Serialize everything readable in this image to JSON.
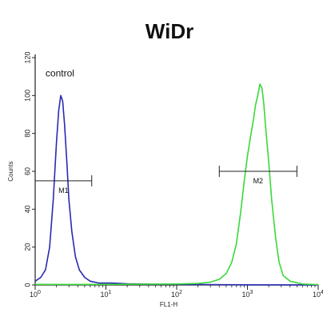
{
  "chart_data": {
    "type": "line",
    "title": "WiDr",
    "xlabel": "FL1-H",
    "ylabel": "Counts",
    "x_scale": "log",
    "xlim": [
      1,
      10000
    ],
    "ylim": [
      0,
      120
    ],
    "x_ticks": [
      {
        "value": 1,
        "base": "10",
        "exp": "0"
      },
      {
        "value": 10,
        "base": "10",
        "exp": "1"
      },
      {
        "value": 100,
        "base": "10",
        "exp": "2"
      },
      {
        "value": 1000,
        "base": "10",
        "exp": "3"
      },
      {
        "value": 10000,
        "base": "10",
        "exp": "4"
      }
    ],
    "y_ticks": [
      0,
      20,
      40,
      60,
      80,
      100,
      120
    ],
    "grid": false,
    "series": [
      {
        "name": "control",
        "color": "#2a2ab0",
        "points": [
          [
            1.0,
            2
          ],
          [
            1.2,
            4
          ],
          [
            1.4,
            8
          ],
          [
            1.6,
            20
          ],
          [
            1.8,
            45
          ],
          [
            2.0,
            75
          ],
          [
            2.15,
            92
          ],
          [
            2.3,
            100
          ],
          [
            2.45,
            97
          ],
          [
            2.6,
            85
          ],
          [
            2.8,
            65
          ],
          [
            3.0,
            45
          ],
          [
            3.3,
            28
          ],
          [
            3.7,
            15
          ],
          [
            4.2,
            8
          ],
          [
            5.0,
            4
          ],
          [
            6.0,
            2
          ],
          [
            8.0,
            1
          ],
          [
            12,
            1
          ],
          [
            20,
            0.6
          ],
          [
            50,
            0.4
          ],
          [
            100,
            0.3
          ],
          [
            300,
            0.2
          ],
          [
            1000,
            0.1
          ],
          [
            10000,
            0
          ]
        ]
      },
      {
        "name": "",
        "color": "#3ad83a",
        "points": [
          [
            1.0,
            0.3
          ],
          [
            10,
            0.3
          ],
          [
            100,
            0.5
          ],
          [
            200,
            0.8
          ],
          [
            300,
            1.5
          ],
          [
            400,
            3
          ],
          [
            500,
            6
          ],
          [
            600,
            12
          ],
          [
            700,
            22
          ],
          [
            800,
            38
          ],
          [
            900,
            55
          ],
          [
            1000,
            68
          ],
          [
            1100,
            78
          ],
          [
            1200,
            86
          ],
          [
            1300,
            95
          ],
          [
            1400,
            100
          ],
          [
            1500,
            106
          ],
          [
            1600,
            104
          ],
          [
            1700,
            96
          ],
          [
            1800,
            84
          ],
          [
            2000,
            65
          ],
          [
            2200,
            45
          ],
          [
            2500,
            25
          ],
          [
            2800,
            12
          ],
          [
            3200,
            5
          ],
          [
            4000,
            2
          ],
          [
            6000,
            0.5
          ],
          [
            10000,
            0.2
          ]
        ]
      }
    ],
    "markers": [
      {
        "label": "M1",
        "x_start": 1.0,
        "x_end": 6.3,
        "y": 55
      },
      {
        "label": "M2",
        "x_start": 400,
        "x_end": 5000,
        "y": 60
      }
    ],
    "annotations": [
      {
        "text": "control",
        "x": 1.4,
        "y": 110
      }
    ]
  }
}
